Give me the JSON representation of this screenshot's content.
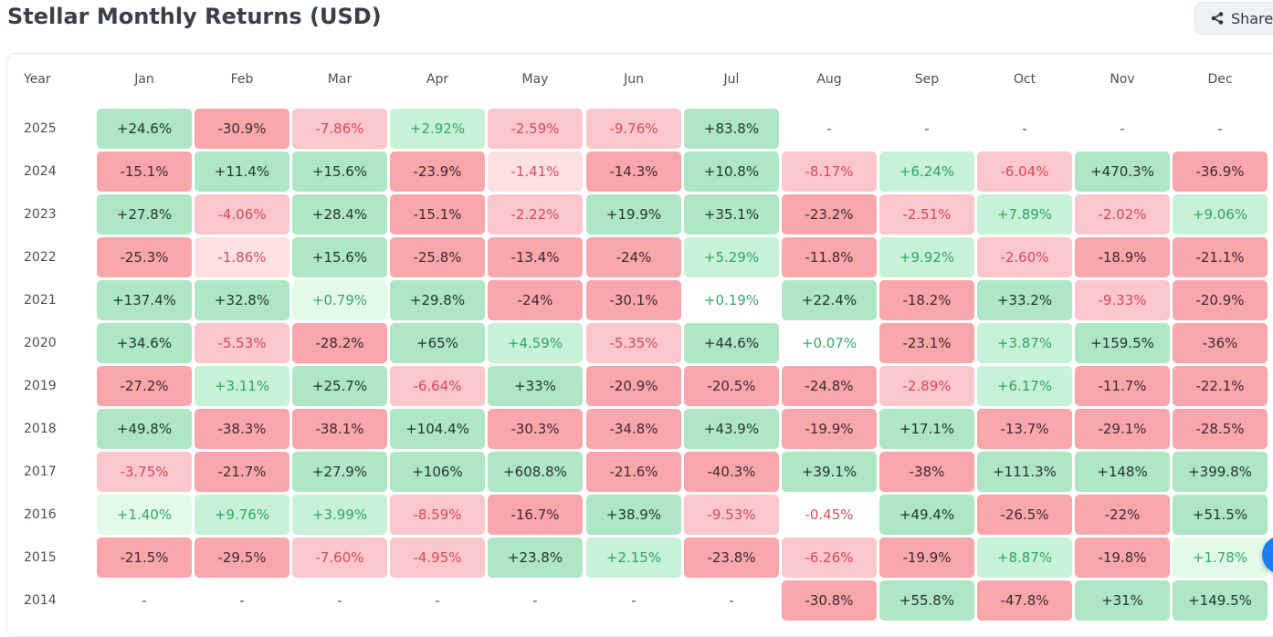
{
  "page": {
    "title": "Stellar Monthly Returns (USD)"
  },
  "share_button": {
    "label": "Share",
    "icon": "share-icon"
  },
  "table": {
    "year_header": "Year",
    "months": [
      "Jan",
      "Feb",
      "Mar",
      "Apr",
      "May",
      "Jun",
      "Jul",
      "Aug",
      "Sep",
      "Oct",
      "Nov",
      "Dec"
    ],
    "rows": [
      {
        "year": "2025",
        "values": [
          "+24.6%",
          "-30.9%",
          "-7.86%",
          "+2.92%",
          "-2.59%",
          "-9.76%",
          "+83.8%",
          "-",
          "-",
          "-",
          "-",
          "-"
        ]
      },
      {
        "year": "2024",
        "values": [
          "-15.1%",
          "+11.4%",
          "+15.6%",
          "-23.9%",
          "-1.41%",
          "-14.3%",
          "+10.8%",
          "-8.17%",
          "+6.24%",
          "-6.04%",
          "+470.3%",
          "-36.9%"
        ]
      },
      {
        "year": "2023",
        "values": [
          "+27.8%",
          "-4.06%",
          "+28.4%",
          "-15.1%",
          "-2.22%",
          "+19.9%",
          "+35.1%",
          "-23.2%",
          "-2.51%",
          "+7.89%",
          "-2.02%",
          "+9.06%"
        ]
      },
      {
        "year": "2022",
        "values": [
          "-25.3%",
          "-1.86%",
          "+15.6%",
          "-25.8%",
          "-13.4%",
          "-24%",
          "+5.29%",
          "-11.8%",
          "+9.92%",
          "-2.60%",
          "-18.9%",
          "-21.1%"
        ]
      },
      {
        "year": "2021",
        "values": [
          "+137.4%",
          "+32.8%",
          "+0.79%",
          "+29.8%",
          "-24%",
          "-30.1%",
          "+0.19%",
          "+22.4%",
          "-18.2%",
          "+33.2%",
          "-9.33%",
          "-20.9%"
        ]
      },
      {
        "year": "2020",
        "values": [
          "+34.6%",
          "-5.53%",
          "-28.2%",
          "+65%",
          "+4.59%",
          "-5.35%",
          "+44.6%",
          "+0.07%",
          "-23.1%",
          "+3.87%",
          "+159.5%",
          "-36%"
        ]
      },
      {
        "year": "2019",
        "values": [
          "-27.2%",
          "+3.11%",
          "+25.7%",
          "-6.64%",
          "+33%",
          "-20.9%",
          "-20.5%",
          "-24.8%",
          "-2.89%",
          "+6.17%",
          "-11.7%",
          "-22.1%"
        ]
      },
      {
        "year": "2018",
        "values": [
          "+49.8%",
          "-38.3%",
          "-38.1%",
          "+104.4%",
          "-30.3%",
          "-34.8%",
          "+43.9%",
          "-19.9%",
          "+17.1%",
          "-13.7%",
          "-29.1%",
          "-28.5%"
        ]
      },
      {
        "year": "2017",
        "values": [
          "-3.75%",
          "-21.7%",
          "+27.9%",
          "+106%",
          "+608.8%",
          "-21.6%",
          "-40.3%",
          "+39.1%",
          "-38%",
          "+111.3%",
          "+148%",
          "+399.8%"
        ]
      },
      {
        "year": "2016",
        "values": [
          "+1.40%",
          "+9.76%",
          "+3.99%",
          "-8.59%",
          "-16.7%",
          "+38.9%",
          "-9.53%",
          "-0.45%",
          "+49.4%",
          "-26.5%",
          "-22%",
          "+51.5%"
        ]
      },
      {
        "year": "2015",
        "values": [
          "-21.5%",
          "-29.5%",
          "-7.60%",
          "-4.95%",
          "+23.8%",
          "+2.15%",
          "-23.8%",
          "-6.26%",
          "-19.9%",
          "+8.87%",
          "-19.8%",
          "+1.78%"
        ]
      },
      {
        "year": "2014",
        "values": [
          "-",
          "-",
          "-",
          "-",
          "-",
          "-",
          "-",
          "-30.8%",
          "+55.8%",
          "-47.8%",
          "+31%",
          "+149.5%"
        ]
      }
    ]
  },
  "colors": {
    "positive_strong": "#aee6c6",
    "positive_medium": "#c8f2d8",
    "positive_light": "#e3fae9",
    "negative_strong": "#f9a6ad",
    "negative_medium": "#fcc7cc",
    "negative_light": "#fde0e2",
    "floating_button": "#1c7ef0"
  }
}
